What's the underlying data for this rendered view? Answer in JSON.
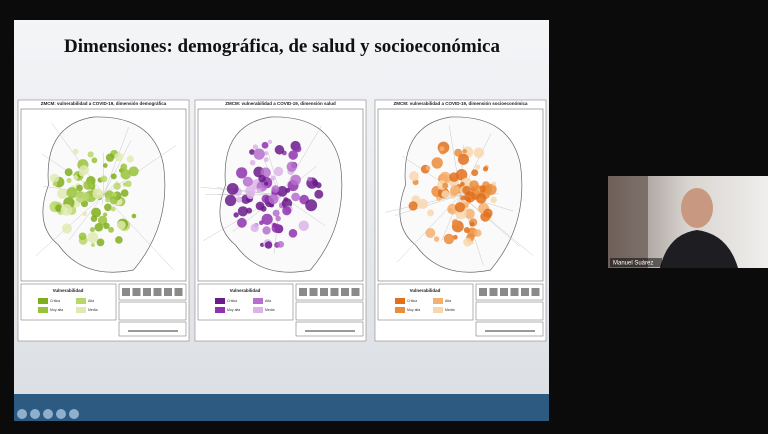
{
  "slide": {
    "title": "Dimensiones: demográfica, de salud y socioeconómica",
    "maps": [
      {
        "caption": "ZMCM: vulnerabilidad a COVID-19, dimensión demográfica",
        "legend_title": "Vulnerabilidad",
        "legend_items": [
          "Crítica",
          "Alta",
          "Muy alta",
          "Media"
        ],
        "colors": [
          "#7fae1c",
          "#b9d66a",
          "#98c23a",
          "#dfeab0"
        ]
      },
      {
        "caption": "ZMCM: vulnerabilidad a COVID-19, dimensión salud",
        "legend_title": "Vulnerabilidad",
        "legend_items": [
          "Crítica",
          "Alta",
          "Muy alta",
          "Media"
        ],
        "colors": [
          "#6a1a8a",
          "#b56fcc",
          "#8e33ad",
          "#dcb3e8"
        ]
      },
      {
        "caption": "ZMCM: vulnerabilidad a COVID-19, dimensión socioeconómica",
        "legend_title": "Vulnerabilidad",
        "legend_items": [
          "Crítica",
          "Alta",
          "Muy alta",
          "Media"
        ],
        "colors": [
          "#e0701c",
          "#f4b070",
          "#ea8c3a",
          "#f8d6ad"
        ]
      }
    ]
  },
  "participant": {
    "name": "Manuel Suárez"
  }
}
